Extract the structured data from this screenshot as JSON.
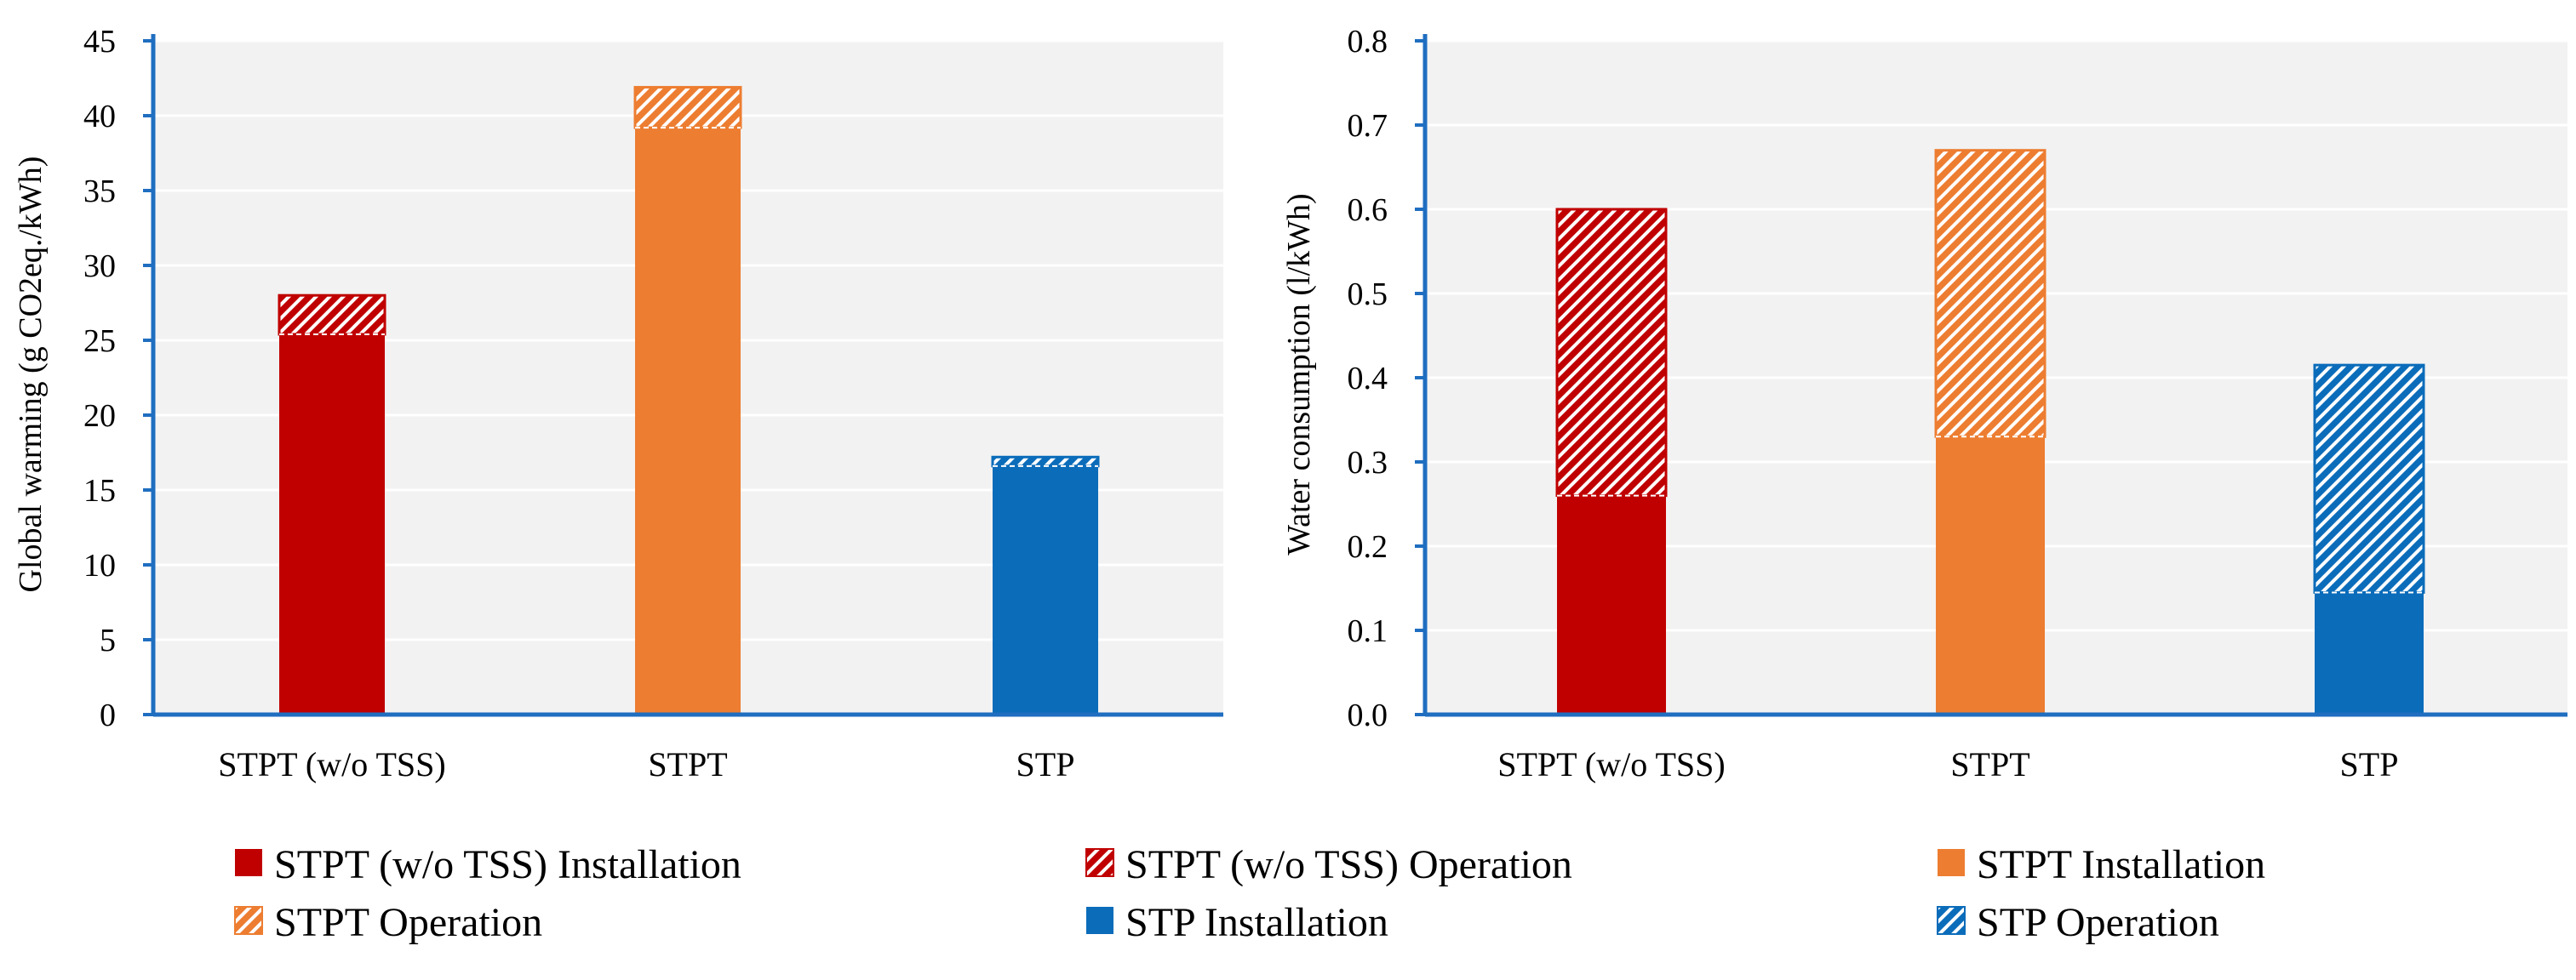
{
  "colors": {
    "stpt_wo_tss": "#C00000",
    "stpt": "#ED7D31",
    "stp": "#0B6CBA",
    "plot_bg": "#F2F2F2",
    "axis": "#1F6EC0",
    "grid": "#FFFFFF"
  },
  "chart_data": [
    {
      "type": "bar",
      "stacked": true,
      "categories": [
        "STPT (w/o TSS)",
        "STPT",
        "STP"
      ],
      "series": [
        {
          "name": "Installation",
          "values": [
            25.4,
            39.2,
            16.6
          ]
        },
        {
          "name": "Operation",
          "values": [
            2.6,
            2.7,
            0.6
          ]
        }
      ],
      "ylabel": "Global warming (g CO2eq./kWh)",
      "ylim": [
        0,
        45
      ],
      "yticks": [
        "0",
        "5",
        "10",
        "15",
        "20",
        "25",
        "30",
        "35",
        "40",
        "45"
      ],
      "grid": true
    },
    {
      "type": "bar",
      "stacked": true,
      "categories": [
        "STPT (w/o TSS)",
        "STPT",
        "STP"
      ],
      "series": [
        {
          "name": "Installation",
          "values": [
            0.26,
            0.33,
            0.145
          ]
        },
        {
          "name": "Operation",
          "values": [
            0.34,
            0.34,
            0.27
          ]
        }
      ],
      "ylabel": "Water consumption (l/kWh)",
      "ylim": [
        0,
        0.8
      ],
      "yticks": [
        "0.0",
        "0.1",
        "0.2",
        "0.3",
        "0.4",
        "0.5",
        "0.6",
        "0.7",
        "0.8"
      ],
      "grid": true
    }
  ],
  "legend": {
    "placement": "bottom",
    "items": [
      {
        "label": "STPT (w/o TSS) Installation",
        "color_key": "stpt_wo_tss",
        "hatched": false
      },
      {
        "label": "STPT (w/o TSS) Operation",
        "color_key": "stpt_wo_tss",
        "hatched": true
      },
      {
        "label": "STPT Installation",
        "color_key": "stpt",
        "hatched": false
      },
      {
        "label": "STPT Operation",
        "color_key": "stpt",
        "hatched": true
      },
      {
        "label": "STP Installation",
        "color_key": "stp",
        "hatched": false
      },
      {
        "label": "STP Operation",
        "color_key": "stp",
        "hatched": true
      }
    ]
  }
}
